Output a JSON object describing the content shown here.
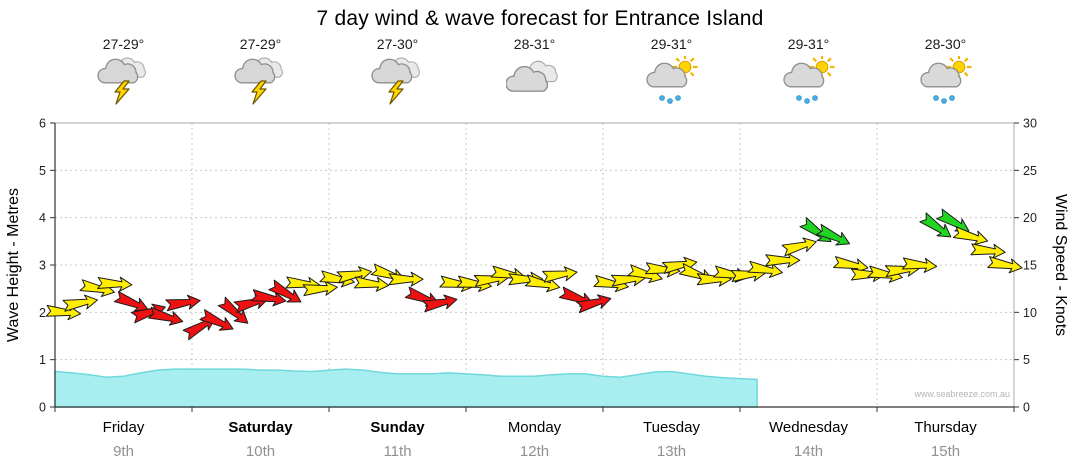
{
  "title": "7 day wind & wave forecast for Entrance Island",
  "watermark": "www.seabreeze.com.au",
  "colors": {
    "wave_fill": "#a8eef0",
    "wave_stroke": "#6fd8dc",
    "arrow_yellow": "#ffee00",
    "arrow_red": "#ee1111",
    "arrow_green": "#22d422",
    "grid": "#c8c8c8",
    "axis": "#333333",
    "date_gray": "#919191"
  },
  "days": [
    {
      "name": "Friday",
      "date": "9th",
      "temp": "27-29°",
      "icon": "storm",
      "bold": false
    },
    {
      "name": "Saturday",
      "date": "10th",
      "temp": "27-29°",
      "icon": "storm",
      "bold": true
    },
    {
      "name": "Sunday",
      "date": "11th",
      "temp": "27-30°",
      "icon": "storm",
      "bold": true
    },
    {
      "name": "Monday",
      "date": "12th",
      "temp": "28-31°",
      "icon": "cloudy",
      "bold": false
    },
    {
      "name": "Tuesday",
      "date": "13th",
      "temp": "29-31°",
      "icon": "sun-showers",
      "bold": false
    },
    {
      "name": "Wednesday",
      "date": "14th",
      "temp": "29-31°",
      "icon": "sun-showers",
      "bold": false
    },
    {
      "name": "Thursday",
      "date": "15th",
      "temp": "28-30°",
      "icon": "sun-showers",
      "bold": false
    }
  ],
  "chart_data": {
    "type": "area",
    "title": "7 day wind & wave forecast for Entrance Island",
    "sample_interval_hours": 3,
    "x_axis": {
      "label": "",
      "days": [
        "Friday 9th",
        "Saturday 10th",
        "Sunday 11th",
        "Monday 12th",
        "Tuesday 13th",
        "Wednesday 14th",
        "Thursday 15th"
      ]
    },
    "y_left": {
      "label": "Wave Height - Metres",
      "range": [
        0,
        6
      ],
      "ticks": [
        0,
        1,
        2,
        3,
        4,
        5,
        6
      ]
    },
    "y_right": {
      "label": "Wind Speed - Knots",
      "range": [
        0,
        30
      ],
      "ticks": [
        0,
        5,
        10,
        15,
        20,
        25,
        30
      ]
    },
    "grid": "dotted horizontal at each metre, dotted vertical at day boundaries",
    "series": [
      {
        "name": "Wave Height (m)",
        "axis": "left",
        "style": "filled-area",
        "color": "#a8eef0",
        "note": "data ends early Wednesday, drops to baseline",
        "values": [
          0.75,
          0.72,
          0.68,
          0.63,
          0.65,
          0.72,
          0.78,
          0.8,
          0.8,
          0.8,
          0.8,
          0.8,
          0.78,
          0.78,
          0.76,
          0.75,
          0.78,
          0.8,
          0.78,
          0.73,
          0.7,
          0.7,
          0.7,
          0.72,
          0.7,
          0.68,
          0.65,
          0.65,
          0.65,
          0.68,
          0.7,
          0.7,
          0.65,
          0.63,
          0.68,
          0.74,
          0.75,
          0.7,
          0.65,
          0.62,
          0.6,
          0.58
        ]
      },
      {
        "name": "Wind Speed (knots)",
        "axis": "right",
        "style": "wind-arrows",
        "point_format": [
          "knots",
          "direction_deg",
          "color_code"
        ],
        "color_codes": {
          "y": "yellow",
          "r": "red",
          "g": "green"
        },
        "values": [
          [
            10,
            5,
            "y"
          ],
          [
            11,
            -10,
            "y"
          ],
          [
            12.5,
            12,
            "y"
          ],
          [
            13,
            3,
            "y"
          ],
          [
            11,
            22,
            "r"
          ],
          [
            10,
            -18,
            "r"
          ],
          [
            9.5,
            15,
            "r"
          ],
          [
            11,
            -8,
            "r"
          ],
          [
            8.5,
            -30,
            "r"
          ],
          [
            9,
            25,
            "r"
          ],
          [
            10,
            40,
            "r"
          ],
          [
            11,
            -15,
            "r"
          ],
          [
            11.5,
            10,
            "r"
          ],
          [
            12,
            30,
            "r"
          ],
          [
            13,
            5,
            "y"
          ],
          [
            12.5,
            -5,
            "y"
          ],
          [
            13.5,
            10,
            "y"
          ],
          [
            14,
            -10,
            "y"
          ],
          [
            13,
            5,
            "y"
          ],
          [
            14,
            18,
            "y"
          ],
          [
            13.5,
            0,
            "y"
          ],
          [
            11.5,
            20,
            "r"
          ],
          [
            11,
            -12,
            "r"
          ],
          [
            13,
            8,
            "y"
          ],
          [
            13,
            8,
            "y"
          ],
          [
            13.5,
            -6,
            "y"
          ],
          [
            14,
            10,
            "y"
          ],
          [
            13.5,
            0,
            "y"
          ],
          [
            13,
            12,
            "y"
          ],
          [
            14,
            -8,
            "y"
          ],
          [
            11.5,
            20,
            "r"
          ],
          [
            11,
            -15,
            "r"
          ],
          [
            13,
            10,
            "y"
          ],
          [
            13.5,
            -5,
            "y"
          ],
          [
            14,
            15,
            "y"
          ],
          [
            14.5,
            5,
            "y"
          ],
          [
            15,
            -10,
            "y"
          ],
          [
            14,
            20,
            "y"
          ],
          [
            13.5,
            0,
            "y"
          ],
          [
            14,
            10,
            "y"
          ],
          [
            14,
            -5,
            "y"
          ],
          [
            14.5,
            10,
            "y"
          ],
          [
            15.5,
            0,
            "y"
          ],
          [
            17,
            -15,
            "y"
          ],
          [
            18.5,
            35,
            "g"
          ],
          [
            18,
            25,
            "g"
          ],
          [
            15,
            10,
            "y"
          ],
          [
            14,
            0,
            "y"
          ],
          [
            14,
            10,
            "y"
          ],
          [
            14.5,
            -5,
            "y"
          ],
          [
            15,
            5,
            "y"
          ],
          [
            19,
            35,
            "g"
          ],
          [
            19.5,
            30,
            "g"
          ],
          [
            18,
            15,
            "y"
          ],
          [
            16.5,
            5,
            "y"
          ],
          [
            15,
            10,
            "y"
          ]
        ]
      }
    ]
  }
}
